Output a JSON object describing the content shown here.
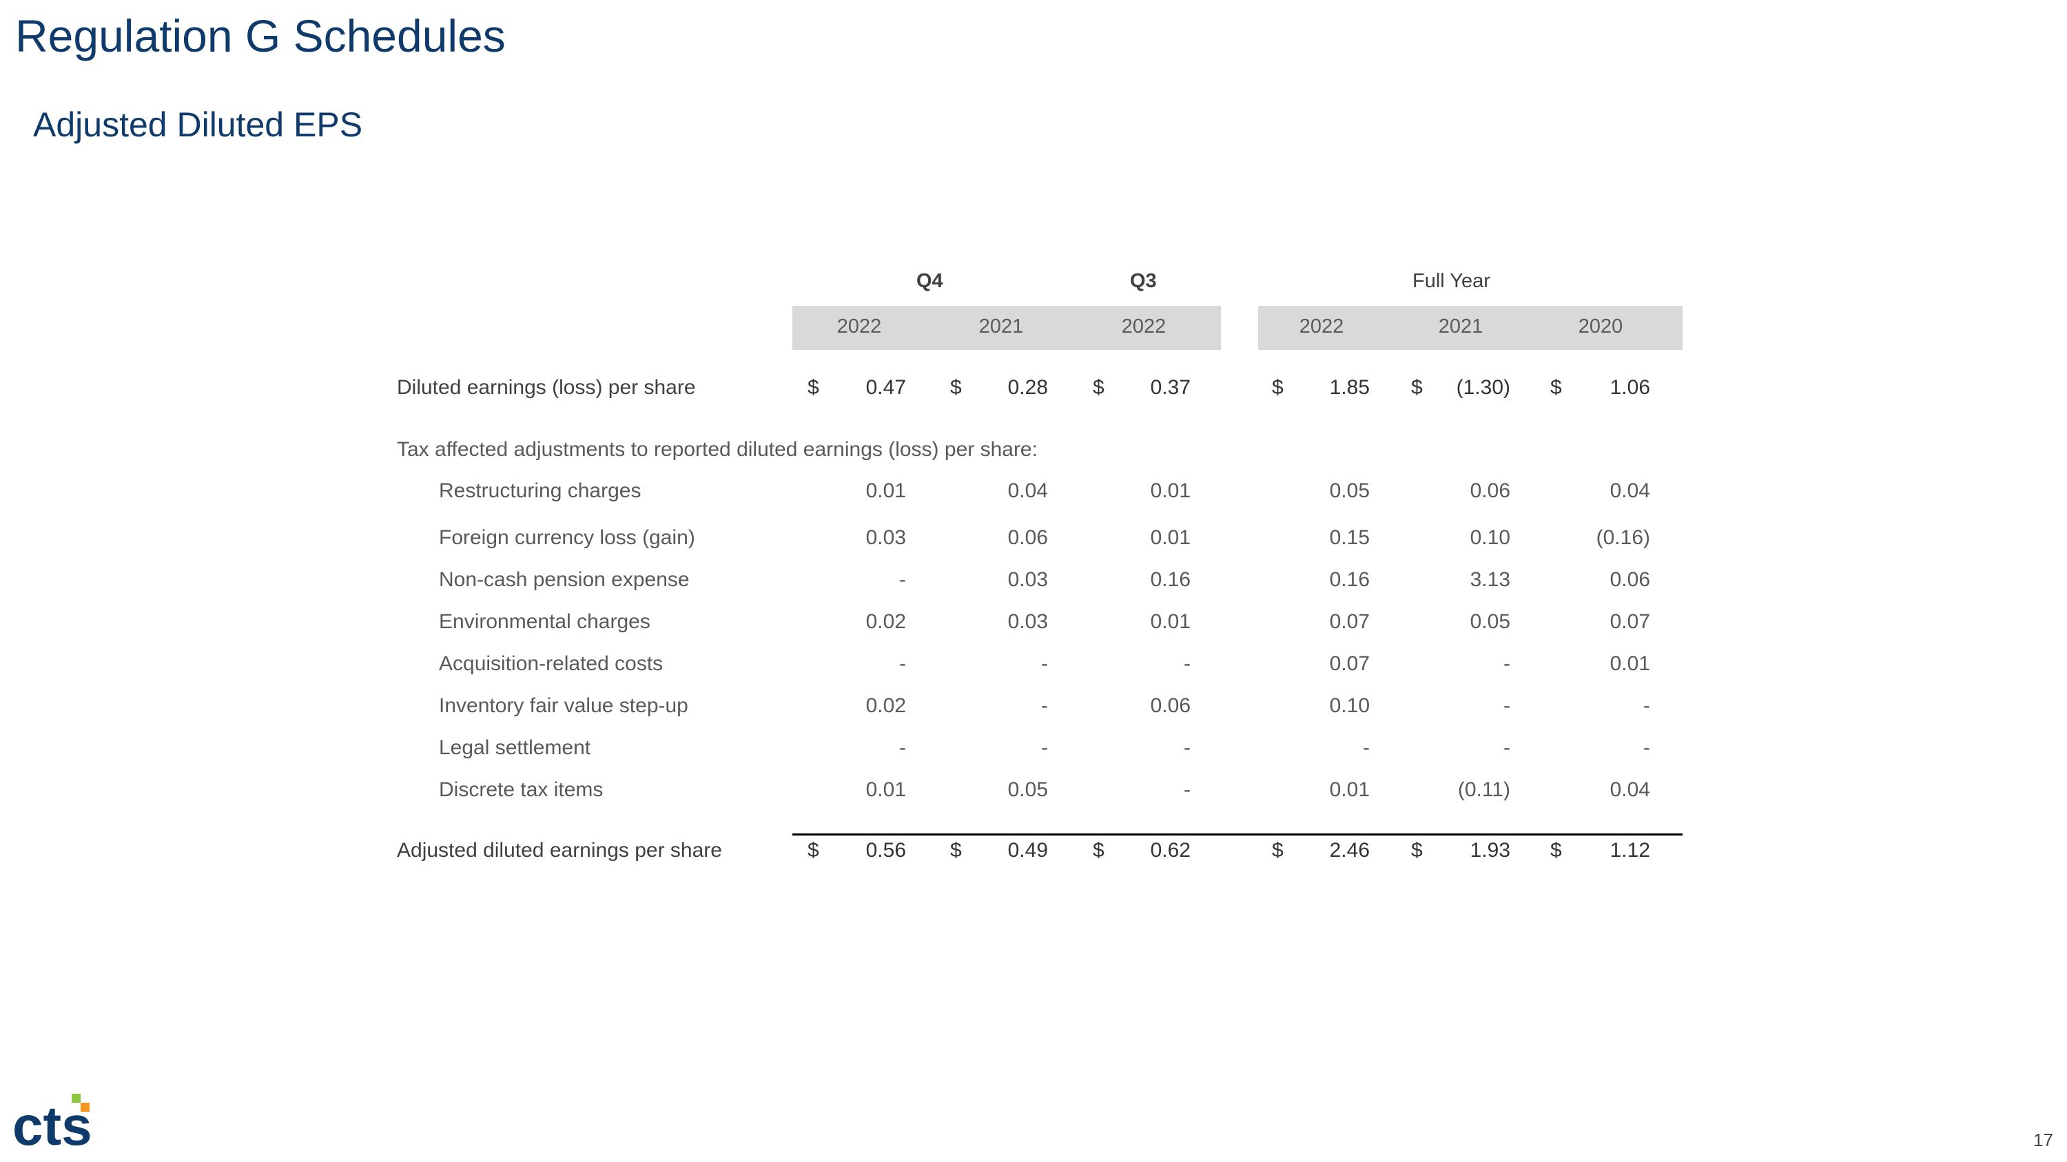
{
  "page": {
    "title": "Regulation G Schedules",
    "subtitle": "Adjusted Diluted EPS",
    "page_number": "17",
    "logo_text": "cts"
  },
  "table": {
    "group_headers": [
      "Q4",
      "Q3",
      "Full Year"
    ],
    "years": [
      "2022",
      "2021",
      "2022",
      "2022",
      "2021",
      "2020"
    ],
    "currency_symbol": "$",
    "diluted": {
      "label": "Diluted earnings (loss) per share",
      "values": [
        "0.47",
        "0.28",
        "0.37",
        "1.85",
        "(1.30)",
        "1.06"
      ]
    },
    "adjustments_header": "Tax affected adjustments to reported diluted earnings (loss) per share:",
    "adjustments": [
      {
        "label": "Restructuring charges",
        "values": [
          "0.01",
          "0.04",
          "0.01",
          "0.05",
          "0.06",
          "0.04"
        ]
      },
      {
        "label": "Foreign currency loss (gain)",
        "values": [
          "0.03",
          "0.06",
          "0.01",
          "0.15",
          "0.10",
          "(0.16)"
        ]
      },
      {
        "label": "Non-cash pension expense",
        "values": [
          "-",
          "0.03",
          "0.16",
          "0.16",
          "3.13",
          "0.06"
        ]
      },
      {
        "label": "Environmental charges",
        "values": [
          "0.02",
          "0.03",
          "0.01",
          "0.07",
          "0.05",
          "0.07"
        ]
      },
      {
        "label": "Acquisition-related costs",
        "values": [
          "-",
          "-",
          "-",
          "0.07",
          "-",
          "0.01"
        ]
      },
      {
        "label": "Inventory fair value step-up",
        "values": [
          "0.02",
          "-",
          "0.06",
          "0.10",
          "-",
          "-"
        ]
      },
      {
        "label": "Legal settlement",
        "values": [
          "-",
          "-",
          "-",
          "-",
          "-",
          "-"
        ]
      },
      {
        "label": "Discrete tax items",
        "values": [
          "0.01",
          "0.05",
          "-",
          "0.01",
          "(0.11)",
          "0.04"
        ]
      }
    ],
    "adjusted": {
      "label": "Adjusted diluted earnings per share",
      "values": [
        "0.56",
        "0.49",
        "0.62",
        "2.46",
        "1.93",
        "1.12"
      ]
    }
  }
}
